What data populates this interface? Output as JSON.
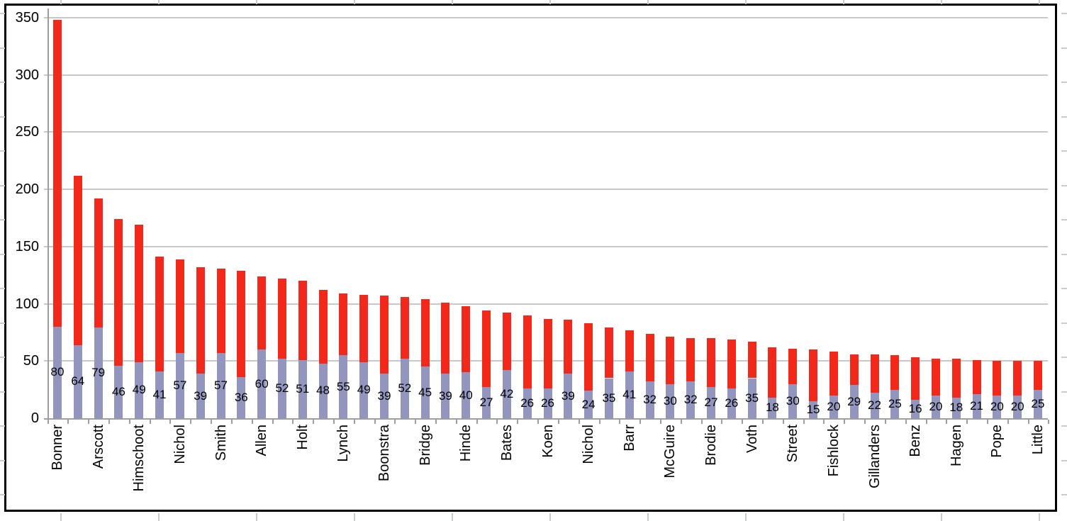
{
  "chart_data": {
    "type": "bar",
    "stacked": true,
    "title": "",
    "xlabel": "",
    "ylabel": "",
    "ylim": [
      0,
      350
    ],
    "yticks": [
      0,
      50,
      100,
      150,
      200,
      250,
      300,
      350
    ],
    "grid": "horizontal",
    "legend": "none",
    "x_label_style": "rotated-90-alternating",
    "categories": [
      "Bonner",
      "",
      "Arscott",
      "",
      "Himschoot",
      "",
      "Nichol",
      "",
      "Smith",
      "",
      "Allen",
      "",
      "Holt",
      "",
      "Lynch",
      "",
      "Boonstra",
      "",
      "Bridge",
      "",
      "Hinde",
      "",
      "Bates",
      "",
      "Koen",
      "",
      "Nichol",
      "",
      "Barr",
      "",
      "McGuire",
      "",
      "Brodie",
      "",
      "Voth",
      "",
      "Street",
      "",
      "Fishlock",
      "",
      "Gillanders",
      "",
      "Benz",
      "",
      "Hagen",
      "",
      "Pope",
      "",
      "Little"
    ],
    "series": [
      {
        "name": "bottom-segment",
        "color": "#9295BD",
        "values": [
          80,
          64,
          79,
          46,
          49,
          41,
          57,
          39,
          57,
          36,
          60,
          52,
          51,
          48,
          55,
          49,
          39,
          52,
          45,
          39,
          40,
          27,
          42,
          26,
          26,
          39,
          24,
          35,
          41,
          32,
          30,
          32,
          27,
          26,
          35,
          18,
          30,
          15,
          20,
          29,
          22,
          25,
          16,
          20,
          18,
          21,
          20,
          20,
          25
        ]
      },
      {
        "name": "top-segment",
        "color": "#F2281A",
        "values": [
          268,
          148,
          113,
          128,
          120,
          100,
          82,
          93,
          74,
          93,
          64,
          70,
          69,
          64,
          54,
          59,
          68,
          54,
          59,
          62,
          58,
          67,
          50,
          64,
          61,
          47,
          59,
          44,
          36,
          42,
          41,
          38,
          43,
          43,
          32,
          44,
          31,
          45,
          38,
          27,
          34,
          30,
          37,
          32,
          34,
          30,
          30,
          30,
          25
        ]
      }
    ],
    "estimated_totals": [
      348,
      212,
      192,
      174,
      169,
      141,
      139,
      132,
      131,
      129,
      124,
      122,
      120,
      112,
      109,
      108,
      107,
      106,
      104,
      101,
      98,
      94,
      92,
      90,
      87,
      86,
      83,
      79,
      77,
      74,
      71,
      70,
      70,
      69,
      67,
      62,
      61,
      60,
      58,
      56,
      56,
      55,
      53,
      52,
      52,
      51,
      50,
      50,
      50
    ],
    "data_labels": {
      "series": "bottom-segment",
      "position": "center",
      "values": [
        80,
        64,
        79,
        46,
        49,
        41,
        57,
        39,
        57,
        36,
        60,
        52,
        51,
        48,
        55,
        49,
        39,
        52,
        45,
        39,
        40,
        27,
        42,
        26,
        26,
        39,
        24,
        35,
        41,
        32,
        30,
        32,
        27,
        26,
        35,
        18,
        30,
        15,
        20,
        29,
        22,
        25,
        16,
        20,
        18,
        21,
        20,
        20,
        25
      ]
    }
  },
  "colors": {
    "background": "#FFFFFF",
    "frame": "#000000",
    "gridline": "#C8C8C8",
    "axis": "#9E9E9E",
    "stub": "#C9CDD0",
    "text": "#000000",
    "bar_bottom": "#9295BD",
    "bar_top": "#F2281A"
  }
}
